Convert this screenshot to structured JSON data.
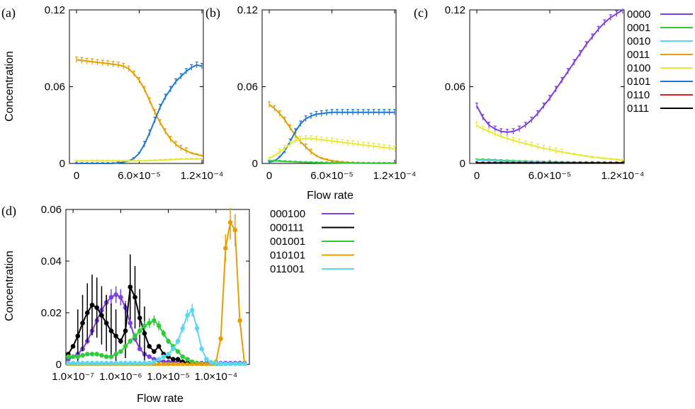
{
  "figure": {
    "panel_labels": [
      "(a)",
      "(b)",
      "(c)",
      "(d)"
    ],
    "ylabel": "Concentration",
    "xlabel": "Flow rate"
  },
  "chart_data": [
    {
      "panel": "(a)",
      "type": "line",
      "xlim": [
        0,
        0.00012
      ],
      "ylim": [
        0,
        0.12
      ],
      "xticks": [
        "0",
        "6.0×10⁻⁵",
        "1.2×10⁻⁴"
      ],
      "yticks": [
        "0",
        "0.06",
        "0.12"
      ],
      "ylabel": "Concentration",
      "xlabel": "",
      "x": [
        0,
        5e-06,
        1e-05,
        1.5e-05,
        2e-05,
        2.5e-05,
        3e-05,
        3.5e-05,
        4e-05,
        4.5e-05,
        5e-05,
        5.5e-05,
        6e-05,
        6.5e-05,
        7e-05,
        7.5e-05,
        8e-05,
        8.5e-05,
        9e-05,
        9.5e-05,
        0.0001,
        0.000105,
        0.00011,
        0.000115,
        0.00012
      ],
      "series": [
        {
          "name": "0011",
          "color": "#e69f00",
          "values": [
            0.081,
            0.0805,
            0.08,
            0.0795,
            0.079,
            0.0785,
            0.078,
            0.0775,
            0.077,
            0.076,
            0.074,
            0.07,
            0.065,
            0.058,
            0.049,
            0.04,
            0.032,
            0.025,
            0.019,
            0.015,
            0.012,
            0.01,
            0.008,
            0.007,
            0.006
          ]
        },
        {
          "name": "0101",
          "color": "#1f77d4",
          "values": [
            0,
            0,
            0,
            0,
            0,
            0,
            0,
            0,
            0.0005,
            0.001,
            0.002,
            0.004,
            0.008,
            0.015,
            0.024,
            0.034,
            0.044,
            0.052,
            0.058,
            0.064,
            0.068,
            0.072,
            0.075,
            0.077,
            0.076
          ]
        },
        {
          "name": "0100",
          "color": "#e8e83a",
          "values": [
            0.002,
            0.002,
            0.002,
            0.002,
            0.002,
            0.002,
            0.002,
            0.002,
            0.002,
            0.002,
            0.002,
            0.002,
            0.002,
            0.002,
            0.0022,
            0.0024,
            0.0026,
            0.0028,
            0.003,
            0.0032,
            0.0033,
            0.0034,
            0.0035,
            0.0035,
            0.0035
          ]
        }
      ]
    },
    {
      "panel": "(b)",
      "type": "line",
      "xlim": [
        0,
        0.00012
      ],
      "ylim": [
        0,
        0.12
      ],
      "xticks": [
        "0",
        "6.0×10⁻⁵",
        "1.2×10⁻⁴"
      ],
      "yticks": [
        "0",
        "0.06",
        "0.12"
      ],
      "ylabel": "",
      "xlabel": "Flow rate",
      "x": [
        0,
        5e-06,
        1e-05,
        1.5e-05,
        2e-05,
        2.5e-05,
        3e-05,
        3.5e-05,
        4e-05,
        4.5e-05,
        5e-05,
        5.5e-05,
        6e-05,
        6.5e-05,
        7e-05,
        7.5e-05,
        8e-05,
        8.5e-05,
        9e-05,
        9.5e-05,
        0.0001,
        0.000105,
        0.00011,
        0.000115,
        0.00012
      ],
      "series": [
        {
          "name": "0011",
          "color": "#e69f00",
          "values": [
            0.046,
            0.043,
            0.039,
            0.034,
            0.028,
            0.022,
            0.017,
            0.013,
            0.009,
            0.006,
            0.004,
            0.003,
            0.002,
            0.0015,
            0.001,
            0.0007,
            0.0005,
            0.0004,
            0.0003,
            0.0002,
            0.0002,
            0.0001,
            0.0001,
            0.0001,
            0.0001
          ]
        },
        {
          "name": "0101",
          "color": "#1f77d4",
          "values": [
            0.001,
            0.002,
            0.005,
            0.01,
            0.017,
            0.025,
            0.031,
            0.035,
            0.037,
            0.0385,
            0.039,
            0.0395,
            0.04,
            0.04,
            0.04,
            0.04,
            0.04,
            0.04,
            0.04,
            0.04,
            0.04,
            0.04,
            0.04,
            0.04,
            0.04
          ]
        },
        {
          "name": "0100",
          "color": "#e8e83a",
          "values": [
            0.004,
            0.006,
            0.009,
            0.012,
            0.015,
            0.018,
            0.019,
            0.0195,
            0.0195,
            0.019,
            0.0185,
            0.018,
            0.0175,
            0.017,
            0.0165,
            0.016,
            0.0155,
            0.015,
            0.0145,
            0.014,
            0.0135,
            0.013,
            0.0125,
            0.012,
            0.0115
          ]
        },
        {
          "name": "0001",
          "color": "#2fcc3a",
          "values": [
            0.002,
            0.002,
            0.0018,
            0.0016,
            0.0014,
            0.0012,
            0.001,
            0.0009,
            0.0008,
            0.0007,
            0.0006,
            0.0005,
            0.0004,
            0.0004,
            0.0003,
            0.0003,
            0.0003,
            0.0002,
            0.0002,
            0.0002,
            0.0002,
            0.0002,
            0.0002,
            0.0002,
            0.0002
          ]
        }
      ]
    },
    {
      "panel": "(c)",
      "type": "line",
      "xlim": [
        0,
        0.00012
      ],
      "ylim": [
        0,
        0.12
      ],
      "xticks": [
        "0",
        "6.0×10⁻⁵",
        "1.2×10⁻⁴"
      ],
      "yticks": [
        "0",
        "0.06",
        "0.12"
      ],
      "ylabel": "",
      "xlabel": "",
      "x": [
        0,
        5e-06,
        1e-05,
        1.5e-05,
        2e-05,
        2.5e-05,
        3e-05,
        3.5e-05,
        4e-05,
        4.5e-05,
        5e-05,
        5.5e-05,
        6e-05,
        6.5e-05,
        7e-05,
        7.5e-05,
        8e-05,
        8.5e-05,
        9e-05,
        9.5e-05,
        0.0001,
        0.000105,
        0.00011,
        0.000115,
        0.00012
      ],
      "series": [
        {
          "name": "0000",
          "color": "#7b3fe4",
          "values": [
            0.045,
            0.036,
            0.03,
            0.027,
            0.025,
            0.0245,
            0.025,
            0.027,
            0.03,
            0.034,
            0.039,
            0.045,
            0.051,
            0.058,
            0.065,
            0.072,
            0.079,
            0.086,
            0.093,
            0.099,
            0.105,
            0.11,
            0.114,
            0.117,
            0.12
          ]
        },
        {
          "name": "0100",
          "color": "#e8e83a",
          "values": [
            0.03,
            0.027,
            0.025,
            0.023,
            0.021,
            0.0195,
            0.018,
            0.0167,
            0.0155,
            0.0143,
            0.013,
            0.012,
            0.011,
            0.0099,
            0.009,
            0.008,
            0.0072,
            0.0064,
            0.0057,
            0.005,
            0.0044,
            0.0039,
            0.0034,
            0.003,
            0.0027
          ]
        },
        {
          "name": "0001",
          "color": "#2fcc3a",
          "values": [
            0.003,
            0.003,
            0.0028,
            0.0026,
            0.0024,
            0.0022,
            0.002,
            0.0018,
            0.0017,
            0.0015,
            0.0014,
            0.0013,
            0.0012,
            0.0011,
            0.001,
            0.0009,
            0.0008,
            0.0008,
            0.0007,
            0.0007,
            0.0006,
            0.0006,
            0.0005,
            0.0005,
            0.0005
          ]
        },
        {
          "name": "0010",
          "color": "#5ad8f0",
          "values": [
            0.0025,
            0.0024,
            0.0022,
            0.002,
            0.0018,
            0.0016,
            0.0015,
            0.0014,
            0.0013,
            0.0012,
            0.0011,
            0.001,
            0.0009,
            0.0008,
            0.0008,
            0.0007,
            0.0007,
            0.0006,
            0.0006,
            0.0005,
            0.0005,
            0.0005,
            0.0004,
            0.0004,
            0.0004
          ]
        },
        {
          "name": "0110",
          "color": "#e41a1c",
          "values": [
            0.0005,
            0.0005,
            0.0005,
            0.0005,
            0.0005,
            0.0005,
            0.0005,
            0.0005,
            0.0005,
            0.0005,
            0.0005,
            0.0005,
            0.0005,
            0.0005,
            0.0005,
            0.0005,
            0.0005,
            0.0005,
            0.0005,
            0.0005,
            0.0005,
            0.0005,
            0.0005,
            0.0005,
            0.0005
          ]
        },
        {
          "name": "0111",
          "color": "#000000",
          "values": [
            0.0003,
            0.0003,
            0.0003,
            0.0003,
            0.0003,
            0.0003,
            0.0003,
            0.0003,
            0.0003,
            0.0003,
            0.0003,
            0.0003,
            0.0003,
            0.0003,
            0.0003,
            0.0003,
            0.0003,
            0.0003,
            0.0003,
            0.0003,
            0.0003,
            0.0003,
            0.0003,
            0.0003,
            0.0003
          ]
        }
      ]
    },
    {
      "panel": "(d)",
      "type": "line",
      "xscale": "log",
      "xlim_log10": [
        -7.15,
        -3.3
      ],
      "ylim": [
        0,
        0.06
      ],
      "xticks": [
        "1.0×10⁻⁷",
        "1.0×10⁻⁶",
        "1.0×10⁻⁵",
        "1.0×10⁻⁴"
      ],
      "yticks": [
        "0",
        "0.02",
        "0.04",
        "0.06"
      ],
      "ylabel": "Concentration",
      "xlabel": "Flow rate",
      "log10_x": [
        -7.1,
        -7.0,
        -6.9,
        -6.8,
        -6.7,
        -6.6,
        -6.5,
        -6.4,
        -6.3,
        -6.2,
        -6.1,
        -6.0,
        -5.9,
        -5.8,
        -5.7,
        -5.6,
        -5.5,
        -5.4,
        -5.3,
        -5.2,
        -5.1,
        -5.0,
        -4.9,
        -4.8,
        -4.7,
        -4.6,
        -4.5,
        -4.4,
        -4.3,
        -4.2,
        -4.1,
        -4.0,
        -3.9,
        -3.8,
        -3.7,
        -3.6,
        -3.5,
        -3.4
      ],
      "series": [
        {
          "name": "000100",
          "color": "#7b3fe4",
          "values": [
            0.002,
            0.003,
            0.004,
            0.006,
            0.009,
            0.013,
            0.017,
            0.021,
            0.024,
            0.026,
            0.027,
            0.026,
            0.022,
            0.016,
            0.01,
            0.006,
            0.004,
            0.003,
            0.002,
            0.0015,
            0.001,
            0.001,
            0.001,
            0.001,
            0.0008,
            0.0006,
            0.0005,
            0.0005,
            0.0005,
            0.0005,
            0.0005,
            0.0005,
            0.0005,
            0.0005,
            0.0005,
            0.0005,
            0.0005,
            0.0005
          ]
        },
        {
          "name": "000111",
          "color": "#000000",
          "values": [
            0.004,
            0.007,
            0.011,
            0.016,
            0.02,
            0.023,
            0.022,
            0.019,
            0.016,
            0.013,
            0.011,
            0.009,
            0.013,
            0.03,
            0.026,
            0.018,
            0.012,
            0.007,
            0.005,
            0.007,
            0.004,
            0.003,
            0.002,
            0.002,
            0.001,
            0.0005,
            0.0003,
            0.0002,
            0.0002,
            0.0002,
            0.0002,
            0.0002,
            0.0002,
            0.0002,
            0.0002,
            0.0002,
            0.0002,
            0.0002
          ]
        },
        {
          "name": "001001",
          "color": "#2fcc3a",
          "values": [
            0.003,
            0.003,
            0.003,
            0.0035,
            0.004,
            0.004,
            0.004,
            0.0035,
            0.003,
            0.003,
            0.004,
            0.005,
            0.007,
            0.009,
            0.011,
            0.013,
            0.015,
            0.016,
            0.017,
            0.015,
            0.012,
            0.009,
            0.007,
            0.005,
            0.003,
            0.002,
            0.001,
            0.0005,
            0.0003,
            0.0002,
            0.0002,
            0.0002,
            0.0002,
            0.0002,
            0.0002,
            0.0002,
            0.0002,
            0.0002
          ]
        },
        {
          "name": "010101",
          "color": "#e69f00",
          "values": [
            0,
            0,
            0,
            0,
            0,
            0,
            0,
            0,
            0,
            0,
            0,
            0,
            0,
            0,
            0,
            0,
            0,
            0,
            0,
            0,
            0,
            0,
            0,
            0,
            0,
            0,
            0,
            0,
            0,
            0,
            0,
            0.001,
            0.01,
            0.045,
            0.055,
            0.052,
            0.017,
            0
          ]
        },
        {
          "name": "011001",
          "color": "#5ad8f0",
          "values": [
            0.0005,
            0.0005,
            0.0005,
            0.0005,
            0.0005,
            0.0005,
            0.0005,
            0.0005,
            0.0005,
            0.0005,
            0.0005,
            0.0005,
            0.0005,
            0.0005,
            0.0005,
            0.0005,
            0.0005,
            0.0005,
            0.001,
            0.002,
            0.003,
            0.004,
            0.006,
            0.009,
            0.014,
            0.019,
            0.021,
            0.014,
            0.006,
            0.002,
            0.0008,
            0.0005,
            0.0003,
            0.0002,
            0.0002,
            0.0002,
            0.0002,
            0.0002
          ]
        }
      ]
    }
  ],
  "legends": {
    "top": [
      "0000",
      "0001",
      "0010",
      "0011",
      "0100",
      "0101",
      "0110",
      "0111"
    ],
    "top_colors": [
      "#7b3fe4",
      "#2fcc3a",
      "#5ad8f0",
      "#e69f00",
      "#e8e83a",
      "#1f77d4",
      "#e41a1c",
      "#000000"
    ],
    "bottom": [
      "000100",
      "000111",
      "001001",
      "010101",
      "011001"
    ],
    "bottom_colors": [
      "#7b3fe4",
      "#000000",
      "#2fcc3a",
      "#e69f00",
      "#5ad8f0"
    ]
  }
}
